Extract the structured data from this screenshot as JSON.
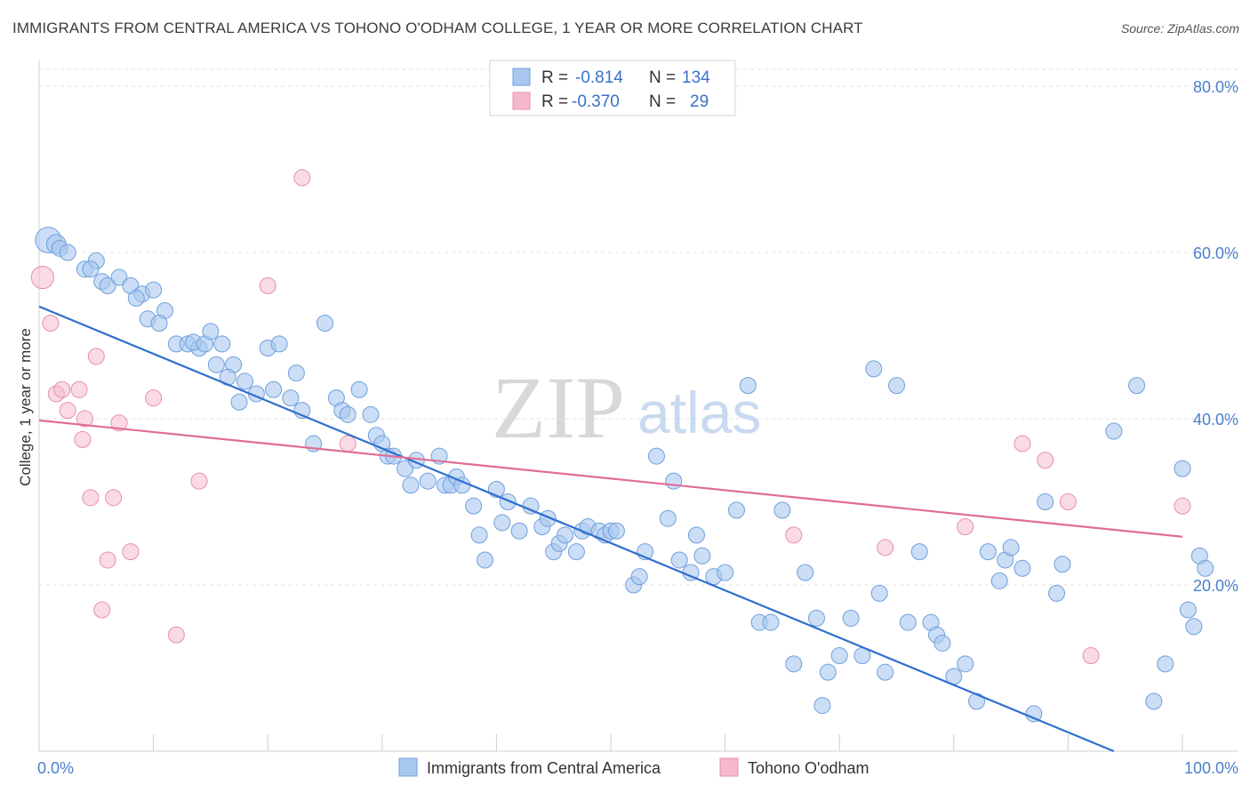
{
  "title": "IMMIGRANTS FROM CENTRAL AMERICA VS TOHONO O'ODHAM COLLEGE, 1 YEAR OR MORE CORRELATION CHART",
  "source": "Source: ZipAtlas.com",
  "watermark": {
    "zip": "ZIP",
    "atlas": "atlas"
  },
  "colors": {
    "blue_fill": "#a9c8ef",
    "blue_stroke": "#6f9fdc",
    "blue_line": "#2f6fcf",
    "pink_fill": "#f6b8cb",
    "pink_stroke": "#e78fab",
    "pink_line": "#e06d97",
    "grid": "#e0e0e0",
    "tick_text": "#4a7fcf"
  },
  "legend": {
    "rows": [
      {
        "r_label": "R =",
        "r_value": "-0.814",
        "n_label": "N =",
        "n_value": "134"
      },
      {
        "r_label": "R =",
        "r_value": "-0.370",
        "n_label": "N =",
        "n_value": "29"
      }
    ]
  },
  "chart_data": {
    "type": "scatter",
    "title": "IMMIGRANTS FROM CENTRAL AMERICA VS TOHONO O'ODHAM COLLEGE, 1 YEAR OR MORE CORRELATION CHART",
    "xlabel": "",
    "ylabel": "College, 1 year or more",
    "xlim": [
      0,
      100
    ],
    "ylim": [
      0,
      80
    ],
    "x_tick_labels": [
      "0.0%",
      "100.0%"
    ],
    "y_ticks": [
      20,
      40,
      60,
      80
    ],
    "y_tick_labels": [
      "20.0%",
      "40.0%",
      "60.0%",
      "80.0%"
    ],
    "grid": true,
    "legend_position": "top-center",
    "series": [
      {
        "name": "Immigrants from Central America",
        "r": -0.814,
        "n": 134,
        "trend": {
          "x": [
            0,
            94
          ],
          "y": [
            53.5,
            0
          ]
        },
        "points": [
          [
            0.8,
            61.5,
            1.6
          ],
          [
            1.5,
            61,
            1.2
          ],
          [
            1.8,
            60.5,
            1
          ],
          [
            2.5,
            60,
            1
          ],
          [
            4,
            58,
            1
          ],
          [
            5,
            59,
            1
          ],
          [
            4.5,
            58,
            1
          ],
          [
            5.5,
            56.5,
            1
          ],
          [
            6,
            56,
            1
          ],
          [
            7,
            57,
            1
          ],
          [
            8,
            56,
            1
          ],
          [
            9,
            55,
            1
          ],
          [
            10,
            55.5,
            1
          ],
          [
            8.5,
            54.5,
            1
          ],
          [
            9.5,
            52,
            1
          ],
          [
            11,
            53,
            1
          ],
          [
            10.5,
            51.5,
            1
          ],
          [
            12,
            49,
            1
          ],
          [
            13,
            49,
            1
          ],
          [
            14,
            48.5,
            1
          ],
          [
            13.5,
            49.2,
            1
          ],
          [
            14.5,
            49,
            1
          ],
          [
            15,
            50.5,
            1
          ],
          [
            16,
            49,
            1
          ],
          [
            15.5,
            46.5,
            1
          ],
          [
            17,
            46.5,
            1
          ],
          [
            16.5,
            45,
            1
          ],
          [
            18,
            44.5,
            1
          ],
          [
            17.5,
            42,
            1
          ],
          [
            19,
            43,
            1
          ],
          [
            20,
            48.5,
            1
          ],
          [
            21,
            49,
            1
          ],
          [
            20.5,
            43.5,
            1
          ],
          [
            22,
            42.5,
            1
          ],
          [
            22.5,
            45.5,
            1
          ],
          [
            23,
            41,
            1
          ],
          [
            24,
            37,
            1
          ],
          [
            25,
            51.5,
            1
          ],
          [
            26,
            42.5,
            1
          ],
          [
            26.5,
            41,
            1
          ],
          [
            27,
            40.5,
            1
          ],
          [
            28,
            43.5,
            1
          ],
          [
            29,
            40.5,
            1
          ],
          [
            29.5,
            38,
            1
          ],
          [
            30,
            37,
            1
          ],
          [
            30.5,
            35.5,
            1
          ],
          [
            31,
            35.5,
            1
          ],
          [
            32,
            34,
            1
          ],
          [
            32.5,
            32,
            1
          ],
          [
            33,
            35,
            1
          ],
          [
            34,
            32.5,
            1
          ],
          [
            35,
            35.5,
            1
          ],
          [
            35.5,
            32,
            1
          ],
          [
            36,
            32,
            1
          ],
          [
            36.5,
            33,
            1
          ],
          [
            37,
            32,
            1
          ],
          [
            38,
            29.5,
            1
          ],
          [
            38.5,
            26,
            1
          ],
          [
            39,
            23,
            1
          ],
          [
            40,
            31.5,
            1
          ],
          [
            40.5,
            27.5,
            1
          ],
          [
            41,
            30,
            1
          ],
          [
            42,
            26.5,
            1
          ],
          [
            43,
            29.5,
            1
          ],
          [
            44,
            27,
            1
          ],
          [
            44.5,
            28,
            1
          ],
          [
            45,
            24,
            1
          ],
          [
            45.5,
            25,
            1
          ],
          [
            46,
            26,
            1
          ],
          [
            47,
            24,
            1
          ],
          [
            47.5,
            26.5,
            1
          ],
          [
            48,
            27,
            1
          ],
          [
            49,
            26.5,
            1
          ],
          [
            49.5,
            26,
            1
          ],
          [
            50,
            26.5,
            1
          ],
          [
            50.5,
            26.5,
            1
          ],
          [
            52,
            20,
            1
          ],
          [
            52.5,
            21,
            1
          ],
          [
            53,
            24,
            1
          ],
          [
            54,
            35.5,
            1
          ],
          [
            55,
            28,
            1
          ],
          [
            55.5,
            32.5,
            1
          ],
          [
            56,
            23,
            1
          ],
          [
            57,
            21.5,
            1
          ],
          [
            57.5,
            26,
            1
          ],
          [
            58,
            23.5,
            1
          ],
          [
            59,
            21,
            1
          ],
          [
            60,
            21.5,
            1
          ],
          [
            61,
            29,
            1
          ],
          [
            62,
            44,
            1
          ],
          [
            63,
            15.5,
            1
          ],
          [
            64,
            15.5,
            1
          ],
          [
            65,
            29,
            1
          ],
          [
            66,
            10.5,
            1
          ],
          [
            67,
            21.5,
            1
          ],
          [
            68,
            16,
            1
          ],
          [
            68.5,
            5.5,
            1
          ],
          [
            69,
            9.5,
            1
          ],
          [
            70,
            11.5,
            1
          ],
          [
            71,
            16,
            1
          ],
          [
            72,
            11.5,
            1
          ],
          [
            73,
            46,
            1
          ],
          [
            73.5,
            19,
            1
          ],
          [
            74,
            9.5,
            1
          ],
          [
            75,
            44,
            1
          ],
          [
            76,
            15.5,
            1
          ],
          [
            77,
            24,
            1
          ],
          [
            78,
            15.5,
            1
          ],
          [
            78.5,
            14,
            1
          ],
          [
            79,
            13,
            1
          ],
          [
            80,
            9,
            1
          ],
          [
            81,
            10.5,
            1
          ],
          [
            82,
            6,
            1
          ],
          [
            83,
            24,
            1
          ],
          [
            84,
            20.5,
            1
          ],
          [
            84.5,
            23,
            1
          ],
          [
            85,
            24.5,
            1
          ],
          [
            86,
            22,
            1
          ],
          [
            87,
            4.5,
            1
          ],
          [
            88,
            30,
            1
          ],
          [
            89,
            19,
            1
          ],
          [
            89.5,
            22.5,
            1
          ],
          [
            94,
            38.5,
            1
          ],
          [
            96,
            44,
            1
          ],
          [
            97.5,
            6,
            1
          ],
          [
            98.5,
            10.5,
            1
          ],
          [
            100,
            34,
            1
          ],
          [
            100.5,
            17,
            1
          ],
          [
            101,
            15,
            1
          ],
          [
            101.5,
            23.5,
            1
          ],
          [
            102,
            22,
            1
          ]
        ]
      },
      {
        "name": "Tohono O'odham",
        "r": -0.37,
        "n": 29,
        "trend": {
          "x": [
            0,
            100
          ],
          "y": [
            39.8,
            25.8
          ]
        },
        "points": [
          [
            0.3,
            57,
            1.4
          ],
          [
            1,
            51.5,
            1
          ],
          [
            1.5,
            43,
            1
          ],
          [
            2,
            43.5,
            1
          ],
          [
            2.5,
            41,
            1
          ],
          [
            3.5,
            43.5,
            1
          ],
          [
            3.8,
            37.5,
            1
          ],
          [
            4,
            40,
            1
          ],
          [
            4.5,
            30.5,
            1
          ],
          [
            5,
            47.5,
            1
          ],
          [
            5.5,
            17,
            1
          ],
          [
            6,
            23,
            1
          ],
          [
            6.5,
            30.5,
            1
          ],
          [
            7,
            39.5,
            1
          ],
          [
            8,
            24,
            1
          ],
          [
            10,
            42.5,
            1
          ],
          [
            12,
            14,
            1
          ],
          [
            14,
            32.5,
            1
          ],
          [
            20,
            56,
            1
          ],
          [
            23,
            69,
            1
          ],
          [
            27,
            37,
            1
          ],
          [
            66,
            26,
            1
          ],
          [
            74,
            24.5,
            1
          ],
          [
            81,
            27,
            1
          ],
          [
            86,
            37,
            1
          ],
          [
            88,
            35,
            1
          ],
          [
            90,
            30,
            1
          ],
          [
            92,
            11.5,
            1
          ],
          [
            100,
            29.5,
            1
          ]
        ]
      }
    ]
  }
}
